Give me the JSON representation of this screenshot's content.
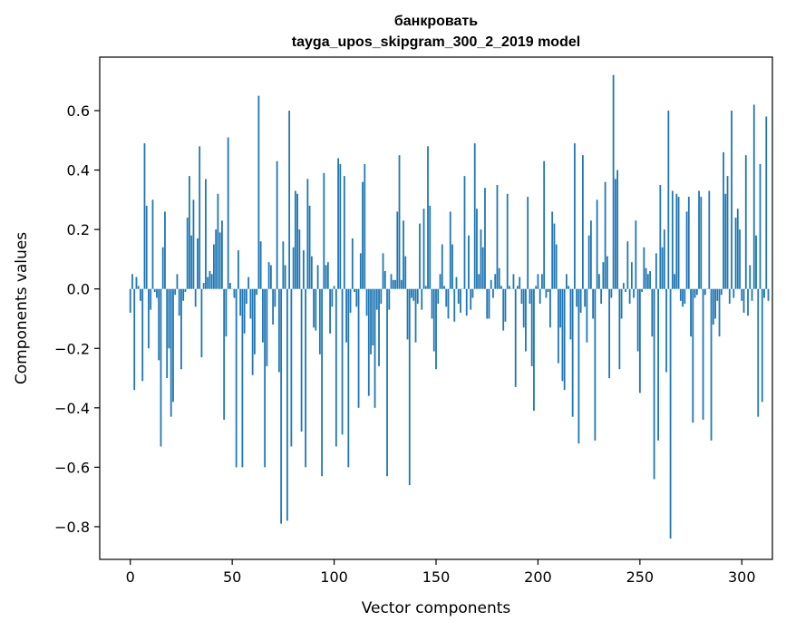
{
  "chart_data": {
    "type": "bar",
    "title": "банкровать",
    "subtitle": "tayga_upos_skipgram_300_2_2019 model",
    "xlabel": "Vector components",
    "ylabel": "Components values",
    "xlim": [
      -15,
      315
    ],
    "ylim": [
      -0.91,
      0.78
    ],
    "xticks": [
      0,
      50,
      100,
      150,
      200,
      250,
      300
    ],
    "xtick_labels": [
      "0",
      "50",
      "100",
      "150",
      "200",
      "250",
      "300"
    ],
    "yticks": [
      -0.8,
      -0.6,
      -0.4,
      -0.2,
      0.0,
      0.2,
      0.4,
      0.6
    ],
    "ytick_labels": [
      "−0.8",
      "−0.6",
      "−0.4",
      "−0.2",
      "0.0",
      "0.2",
      "0.4",
      "0.6"
    ],
    "grid": false,
    "bar_color": "#1f77b4",
    "values": [
      -0.08,
      0.05,
      -0.34,
      0.04,
      0.01,
      -0.04,
      -0.31,
      0.49,
      0.28,
      -0.2,
      -0.07,
      0.3,
      -0.01,
      -0.03,
      -0.24,
      -0.53,
      0.14,
      0.26,
      -0.3,
      -0.2,
      -0.43,
      -0.38,
      -0.02,
      0.05,
      -0.09,
      -0.27,
      -0.04,
      -0.01,
      0.24,
      0.38,
      0.18,
      0.3,
      -0.06,
      0.17,
      0.48,
      -0.23,
      0.02,
      0.37,
      0.04,
      0.06,
      0.05,
      0.15,
      0.2,
      0.32,
      0.19,
      0.23,
      -0.44,
      -0.16,
      0.51,
      0.02,
      0.0,
      -0.03,
      -0.6,
      0.13,
      -0.09,
      -0.6,
      -0.15,
      -0.05,
      0.04,
      -0.1,
      -0.29,
      -0.22,
      -0.02,
      0.65,
      0.16,
      -0.18,
      -0.6,
      -0.26,
      0.09,
      0.08,
      -0.12,
      -0.06,
      0.43,
      -0.28,
      -0.79,
      0.16,
      0.08,
      -0.78,
      0.6,
      -0.53,
      0.14,
      0.33,
      0.32,
      0.2,
      -0.48,
      0.13,
      -0.6,
      0.37,
      0.28,
      0.11,
      -0.13,
      -0.14,
      0.08,
      -0.22,
      -0.63,
      0.39,
      0.08,
      0.09,
      -0.15,
      -0.06,
      0.01,
      -0.53,
      0.44,
      0.42,
      -0.49,
      0.38,
      -0.18,
      -0.6,
      -0.08,
      0.17,
      -0.01,
      -0.06,
      -0.4,
      0.12,
      0.36,
      0.42,
      -0.09,
      -0.36,
      -0.22,
      -0.19,
      -0.4,
      -0.07,
      -0.26,
      -0.05,
      0.12,
      0.06,
      -0.63,
      -0.07,
      0.05,
      0.03,
      0.03,
      0.26,
      0.45,
      0.03,
      0.23,
      0.11,
      -0.17,
      -0.66,
      -0.03,
      -0.04,
      -0.18,
      -0.05,
      0.22,
      -0.07,
      0.27,
      0.01,
      0.48,
      0.28,
      -0.1,
      -0.21,
      -0.27,
      -0.05,
      0.05,
      0.15,
      0.01,
      -0.06,
      -0.1,
      0.26,
      0.15,
      -0.11,
      0.04,
      -0.05,
      -0.08,
      0.0,
      0.38,
      -0.09,
      0.18,
      -0.07,
      -0.03,
      0.49,
      0.27,
      0.05,
      0.2,
      0.14,
      0.34,
      -0.1,
      -0.1,
      0.03,
      -0.03,
      0.05,
      0.35,
      0.07,
      0.01,
      -0.14,
      -0.11,
      0.32,
      0.01,
      0.0,
      0.05,
      -0.33,
      0.01,
      0.04,
      -0.05,
      -0.13,
      -0.21,
      0.31,
      -0.05,
      -0.26,
      -0.41,
      0.01,
      0.05,
      -0.05,
      0.05,
      0.43,
      -0.03,
      -0.01,
      -0.13,
      0.26,
      0.22,
      0.15,
      -0.25,
      -0.13,
      -0.31,
      -0.34,
      0.05,
      0.01,
      -0.17,
      -0.43,
      0.49,
      -0.06,
      -0.52,
      -0.08,
      0.45,
      -0.06,
      -0.18,
      0.18,
      0.23,
      -0.1,
      -0.51,
      0.3,
      0.05,
      -0.05,
      0.09,
      0.36,
      0.11,
      -0.3,
      -0.03,
      0.72,
      0.37,
      0.4,
      -0.27,
      -0.1,
      0.02,
      -0.01,
      0.16,
      -0.05,
      0.09,
      -0.03,
      0.23,
      -0.21,
      -0.35,
      -0.01,
      0.14,
      0.07,
      0.05,
      0.06,
      -0.16,
      -0.64,
      0.12,
      -0.51,
      0.35,
      0.14,
      0.2,
      -0.28,
      0.6,
      -0.84,
      0.33,
      0.05,
      0.32,
      0.31,
      -0.04,
      -0.06,
      -0.05,
      0.26,
      0.31,
      -0.16,
      -0.45,
      -0.03,
      -0.02,
      0.33,
      0.31,
      -0.44,
      -0.02,
      0.0,
      0.33,
      -0.51,
      -0.12,
      -0.1,
      -0.04,
      -0.16,
      -0.02,
      0.46,
      0.32,
      0.38,
      -0.05,
      0.6,
      -0.03,
      0.24,
      0.27,
      0.2,
      -0.04,
      -0.08,
      0.45,
      -0.09,
      0.08,
      -0.04,
      0.62,
      0.18,
      -0.43,
      0.42,
      -0.38,
      -0.03,
      0.58,
      -0.04
    ]
  }
}
